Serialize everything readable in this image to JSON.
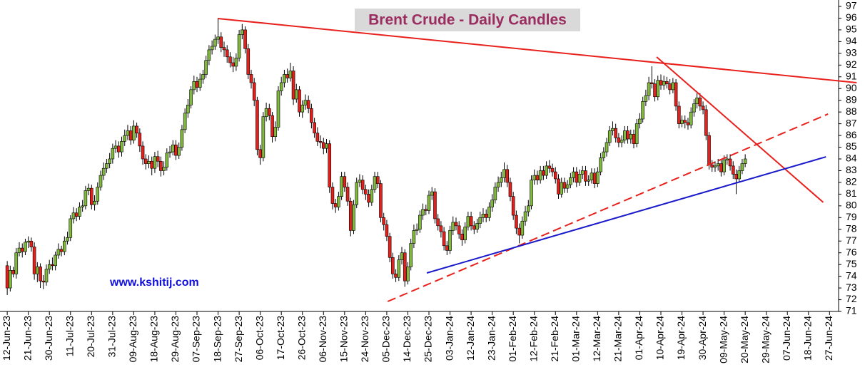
{
  "chart_data": {
    "type": "candlestick",
    "title": "Brent Crude - Daily Candles",
    "annotation": "www.kshitij.com",
    "up_color": "#80b93c",
    "down_color": "#e3201b",
    "open": [
      74.9,
      73.0,
      74.5,
      74.2,
      76.0,
      76.4,
      76.1,
      76.9,
      77.0,
      76.5,
      74.2,
      74.8,
      73.6,
      73.5,
      74.6,
      75.0,
      74.9,
      75.8,
      76.3,
      76.1,
      77.0,
      77.3,
      78.9,
      79.4,
      79.1,
      79.9,
      80.0,
      81.3,
      81.5,
      80.1,
      80.4,
      81.6,
      82.6,
      83.2,
      83.6,
      84.0,
      84.9,
      85.1,
      84.6,
      85.5,
      86.0,
      86.4,
      85.6,
      86.8,
      86.2,
      85.1,
      84.0,
      83.6,
      83.8,
      83.2,
      84.2,
      83.8,
      83.0,
      83.3,
      84.5,
      84.6,
      85.2,
      84.3,
      85.0,
      86.5,
      87.9,
      88.6,
      89.9,
      90.6,
      90.1,
      90.8,
      91.2,
      92.4,
      93.3,
      93.6,
      94.2,
      94.4,
      93.5,
      93.3,
      92.7,
      92.2,
      91.9,
      92.6,
      94.6,
      95.0,
      93.4,
      91.2,
      90.5,
      89.0,
      84.8,
      84.1,
      87.6,
      88.3,
      87.7,
      85.9,
      86.7,
      89.8,
      90.5,
      91.2,
      90.9,
      91.5,
      89.1,
      89.9,
      88.0,
      88.6,
      89.0,
      88.3,
      87.1,
      86.2,
      85.5,
      85.4,
      84.9,
      85.3,
      81.6,
      80.2,
      79.9,
      80.8,
      82.5,
      81.6,
      80.4,
      77.9,
      80.1,
      82.0,
      82.2,
      81.4,
      81.0,
      80.3,
      81.4,
      82.5,
      81.9,
      79.0,
      78.4,
      77.4,
      75.6,
      74.2,
      73.9,
      75.4,
      76.0,
      73.6,
      74.8,
      76.8,
      77.9,
      78.0,
      79.2,
      79.7,
      79.6,
      80.9,
      81.2,
      78.9,
      78.3,
      77.8,
      76.6,
      76.2,
      77.9,
      78.6,
      78.3,
      77.6,
      77.1,
      78.2,
      79.1,
      78.3,
      78.0,
      78.5,
      79.0,
      79.3,
      79.0,
      79.9,
      80.5,
      81.6,
      82.0,
      82.4,
      83.1,
      82.0,
      80.8,
      79.2,
      78.1,
      77.5,
      78.7,
      79.5,
      80.0,
      82.2,
      82.6,
      82.2,
      83.0,
      82.6,
      83.4,
      83.2,
      82.9,
      82.3,
      81.0,
      82.0,
      81.5,
      81.8,
      82.4,
      82.9,
      82.0,
      82.7,
      83.0,
      82.1,
      82.2,
      82.8,
      81.9,
      82.9,
      84.1,
      84.6,
      85.4,
      86.4,
      86.6,
      85.8,
      85.4,
      85.6,
      86.4,
      85.7,
      86.1,
      85.3,
      87.0,
      87.4,
      88.9,
      89.4,
      90.5,
      90.4,
      89.3,
      90.7,
      90.3,
      90.6,
      90.4,
      89.9,
      90.5,
      88.5,
      87.0,
      87.3,
      87.1,
      86.9,
      88.0,
      88.7,
      89.2,
      88.5,
      88.2,
      86.0,
      83.5,
      83.3,
      83.4,
      83.6,
      82.9,
      83.9,
      84.0,
      83.4,
      82.7,
      82.3,
      83.0,
      83.6
    ],
    "high": [
      75.3,
      74.9,
      74.8,
      76.4,
      76.9,
      76.8,
      77.2,
      77.4,
      77.3,
      76.9,
      75.2,
      75.1,
      74.1,
      75.0,
      75.4,
      75.6,
      76.1,
      76.8,
      76.6,
      77.4,
      77.8,
      79.2,
      79.9,
      79.8,
      80.3,
      80.5,
      81.7,
      81.9,
      81.8,
      80.9,
      82.0,
      83.0,
      83.7,
      84.0,
      84.5,
      85.3,
      85.6,
      85.5,
      85.9,
      86.5,
      86.9,
      86.8,
      87.3,
      87.1,
      86.6,
      85.5,
      84.4,
      84.3,
      84.2,
      84.6,
      84.7,
      84.2,
      83.8,
      84.9,
      85.1,
      85.6,
      85.6,
      85.4,
      86.9,
      88.3,
      89.1,
      90.2,
      91.1,
      91.0,
      91.3,
      91.6,
      92.8,
      93.7,
      94.1,
      94.6,
      96.0,
      94.8,
      94.0,
      93.7,
      93.1,
      92.7,
      93.0,
      95.0,
      95.5,
      95.3,
      93.8,
      91.6,
      90.9,
      89.3,
      85.2,
      88.0,
      88.8,
      88.7,
      88.0,
      87.2,
      90.2,
      91.0,
      91.6,
      91.7,
      92.2,
      91.9,
      90.4,
      90.2,
      89.0,
      89.5,
      89.4,
      88.7,
      87.5,
      86.7,
      86.0,
      85.8,
      85.7,
      85.6,
      82.0,
      80.6,
      81.2,
      82.9,
      82.9,
      82.0,
      80.7,
      80.5,
      82.4,
      82.7,
      82.6,
      81.8,
      81.4,
      81.8,
      82.9,
      82.9,
      82.2,
      79.4,
      78.8,
      77.7,
      76.0,
      74.6,
      75.8,
      76.5,
      76.3,
      75.2,
      77.2,
      78.4,
      78.5,
      79.6,
      80.2,
      80.1,
      81.3,
      81.6,
      81.5,
      79.3,
      78.7,
      78.2,
      77.0,
      78.3,
      79.1,
      79.0,
      78.7,
      78.0,
      78.6,
      79.5,
      79.5,
      78.7,
      78.9,
      79.5,
      79.8,
      79.7,
      80.3,
      81.0,
      82.0,
      82.5,
      82.9,
      83.7,
      83.5,
      82.4,
      81.2,
      79.6,
      78.5,
      79.1,
      80.0,
      80.5,
      82.6,
      83.1,
      83.0,
      83.4,
      83.4,
      83.8,
      83.9,
      83.6,
      83.3,
      82.7,
      82.4,
      82.4,
      82.2,
      82.8,
      83.3,
      83.3,
      83.1,
      83.4,
      83.4,
      82.6,
      83.2,
      83.2,
      83.3,
      84.5,
      85.0,
      85.8,
      86.8,
      87.2,
      87.0,
      86.2,
      86.0,
      86.8,
      86.8,
      86.5,
      86.5,
      87.4,
      87.9,
      89.3,
      89.9,
      91.0,
      91.9,
      90.8,
      91.1,
      91.2,
      91.1,
      91.0,
      90.8,
      90.9,
      90.8,
      88.9,
      87.7,
      87.7,
      87.5,
      88.4,
      89.1,
      89.6,
      89.6,
      88.9,
      88.6,
      86.3,
      83.9,
      83.8,
      84.0,
      84.0,
      84.3,
      84.4,
      84.4,
      83.8,
      83.1,
      83.4,
      84.0,
      84.4
    ],
    "low": [
      72.4,
      72.7,
      73.9,
      73.8,
      75.7,
      75.6,
      75.8,
      76.4,
      76.1,
      73.7,
      73.5,
      73.0,
      72.9,
      73.2,
      74.2,
      74.5,
      74.5,
      75.5,
      75.7,
      75.8,
      76.7,
      77.0,
      78.5,
      78.7,
      78.8,
      79.5,
      79.7,
      80.9,
      79.7,
      79.6,
      80.1,
      81.3,
      82.2,
      82.8,
      83.2,
      83.6,
      84.5,
      84.1,
      84.2,
      85.1,
      85.6,
      85.2,
      85.3,
      85.8,
      84.6,
      83.5,
      83.1,
      83.2,
      82.6,
      82.8,
      83.3,
      82.5,
      82.6,
      83.0,
      84.1,
      84.3,
      83.9,
      84.0,
      84.7,
      86.2,
      87.5,
      88.3,
      89.5,
      89.7,
      89.8,
      90.4,
      90.9,
      92.0,
      92.9,
      93.3,
      93.8,
      93.1,
      92.7,
      92.2,
      91.8,
      91.4,
      91.5,
      92.3,
      94.2,
      93.0,
      90.8,
      90.0,
      88.5,
      84.3,
      83.5,
      83.8,
      87.2,
      87.3,
      85.4,
      85.5,
      86.4,
      89.4,
      90.1,
      90.5,
      90.6,
      88.6,
      88.8,
      87.6,
      87.5,
      88.2,
      87.9,
      86.6,
      85.8,
      85.1,
      84.9,
      84.4,
      84.5,
      81.1,
      79.7,
      79.4,
      79.6,
      80.5,
      81.2,
      80.0,
      77.4,
      77.6,
      79.8,
      81.6,
      81.0,
      80.5,
      79.9,
      80.0,
      81.1,
      81.5,
      78.6,
      77.9,
      77.0,
      75.2,
      73.8,
      73.5,
      73.6,
      75.0,
      73.1,
      73.3,
      74.5,
      76.4,
      77.5,
      77.7,
      78.8,
      79.2,
      79.3,
      80.5,
      78.5,
      77.9,
      77.3,
      76.2,
      75.8,
      75.9,
      77.5,
      77.9,
      77.2,
      76.6,
      76.8,
      77.9,
      77.9,
      77.6,
      77.7,
      78.1,
      78.6,
      78.6,
      78.7,
      79.5,
      80.2,
      81.2,
      81.6,
      82.0,
      81.6,
      80.4,
      78.8,
      77.6,
      76.8,
      77.2,
      78.3,
      79.1,
      79.7,
      81.8,
      81.8,
      81.9,
      82.2,
      82.3,
      82.8,
      82.5,
      81.9,
      80.6,
      80.7,
      81.1,
      81.1,
      81.5,
      82.0,
      81.6,
      81.7,
      82.3,
      81.7,
      81.7,
      81.9,
      81.5,
      81.6,
      82.6,
      83.8,
      84.2,
      85.1,
      86.0,
      85.4,
      85.0,
      85.0,
      85.3,
      85.3,
      85.3,
      84.9,
      85.0,
      86.6,
      87.1,
      88.5,
      89.0,
      90.0,
      88.9,
      89.0,
      89.9,
      89.9,
      90.0,
      89.5,
      89.6,
      88.1,
      86.6,
      86.7,
      86.6,
      86.5,
      86.6,
      87.6,
      88.3,
      88.1,
      87.8,
      85.6,
      83.1,
      82.9,
      82.9,
      83.0,
      82.5,
      82.6,
      83.5,
      83.0,
      82.3,
      81.0,
      82.0,
      82.7,
      83.3
    ],
    "close": [
      73.0,
      74.5,
      74.2,
      76.0,
      76.4,
      76.1,
      76.9,
      77.0,
      76.5,
      74.2,
      74.8,
      73.6,
      73.5,
      74.6,
      75.0,
      74.9,
      75.8,
      76.3,
      76.1,
      77.0,
      77.3,
      78.9,
      79.4,
      79.1,
      79.9,
      80.0,
      81.3,
      81.5,
      80.1,
      80.4,
      81.6,
      82.6,
      83.2,
      83.6,
      84.0,
      84.9,
      85.1,
      84.6,
      85.5,
      86.0,
      86.4,
      85.6,
      86.8,
      86.2,
      85.1,
      84.0,
      83.6,
      83.8,
      83.2,
      84.2,
      83.8,
      83.0,
      83.3,
      84.5,
      84.6,
      85.2,
      84.3,
      85.0,
      86.5,
      87.9,
      88.6,
      89.9,
      90.6,
      90.1,
      90.8,
      91.2,
      92.4,
      93.3,
      93.6,
      94.2,
      94.4,
      93.5,
      93.3,
      92.7,
      92.2,
      91.9,
      92.6,
      94.6,
      95.0,
      93.4,
      91.2,
      90.5,
      89.0,
      84.8,
      84.1,
      87.6,
      88.3,
      87.7,
      85.9,
      86.7,
      89.8,
      90.5,
      91.2,
      90.9,
      91.5,
      89.1,
      89.9,
      88.0,
      88.6,
      89.0,
      88.3,
      87.1,
      86.2,
      85.5,
      85.4,
      84.9,
      85.3,
      81.6,
      80.2,
      79.9,
      80.8,
      82.5,
      81.6,
      80.4,
      77.9,
      80.1,
      82.0,
      82.2,
      81.4,
      81.0,
      80.3,
      81.4,
      82.5,
      81.9,
      79.0,
      78.4,
      77.4,
      75.6,
      74.2,
      73.9,
      75.4,
      76.0,
      73.6,
      74.8,
      76.8,
      77.9,
      78.0,
      79.2,
      79.7,
      79.6,
      80.9,
      81.2,
      78.9,
      78.3,
      77.8,
      76.6,
      76.2,
      77.9,
      78.6,
      78.3,
      77.6,
      77.1,
      78.2,
      79.1,
      78.3,
      78.0,
      78.5,
      79.0,
      79.3,
      79.0,
      79.9,
      80.5,
      81.6,
      82.0,
      82.4,
      83.1,
      82.0,
      80.8,
      79.2,
      78.1,
      77.5,
      78.7,
      79.5,
      80.0,
      82.2,
      82.6,
      82.2,
      83.0,
      82.6,
      83.4,
      83.2,
      82.9,
      82.3,
      81.0,
      82.0,
      81.5,
      81.8,
      82.4,
      82.9,
      82.0,
      82.7,
      83.0,
      82.1,
      82.2,
      82.8,
      81.9,
      82.9,
      84.1,
      84.6,
      85.4,
      86.4,
      86.6,
      85.8,
      85.4,
      85.6,
      86.4,
      85.7,
      86.1,
      85.3,
      87.0,
      87.4,
      88.9,
      89.4,
      90.5,
      90.4,
      89.3,
      90.7,
      90.3,
      90.6,
      90.4,
      89.9,
      90.5,
      88.5,
      87.0,
      87.3,
      87.1,
      86.9,
      88.0,
      88.7,
      89.2,
      88.5,
      88.2,
      86.0,
      83.5,
      83.3,
      83.4,
      83.6,
      82.9,
      83.9,
      84.0,
      83.4,
      82.7,
      82.3,
      83.0,
      83.6,
      84.0
    ],
    "trend_lines": [
      {
        "color": "#e8211d",
        "dashed": false,
        "x": [
          69.9,
          282
        ],
        "y": [
          95.97,
          90.5
        ]
      },
      {
        "color": "#e8211d",
        "dashed": false,
        "x": [
          215.6,
          270.9
        ],
        "y": [
          92.69,
          80.3
        ]
      },
      {
        "color": "#e8211d",
        "dashed": true,
        "x": [
          126.3,
          272.5
        ],
        "y": [
          71.85,
          87.83
        ]
      },
      {
        "color": "#1a1acc",
        "dashed": false,
        "x": [
          139.3,
          271.8
        ],
        "y": [
          74.28,
          84.18
        ]
      }
    ],
    "xlim": [
      -2.4,
      276
    ],
    "xticks": [
      {
        "value": 0,
        "label": "12-Jun-23"
      },
      {
        "value": 7,
        "label": "21-Jun-23"
      },
      {
        "value": 14,
        "label": "30-Jun-23"
      },
      {
        "value": 21,
        "label": "11-Jul-23"
      },
      {
        "value": 28,
        "label": "20-Jul-23"
      },
      {
        "value": 35,
        "label": "31-Jul-23"
      },
      {
        "value": 42,
        "label": "09-Aug-23"
      },
      {
        "value": 49,
        "label": "18-Aug-23"
      },
      {
        "value": 56,
        "label": "29-Aug-23"
      },
      {
        "value": 63,
        "label": "07-Sep-23"
      },
      {
        "value": 70,
        "label": "18-Sep-23"
      },
      {
        "value": 77,
        "label": "27-Sep-23"
      },
      {
        "value": 84,
        "label": "06-Oct-23"
      },
      {
        "value": 91,
        "label": "17-Oct-23"
      },
      {
        "value": 98,
        "label": "26-Oct-23"
      },
      {
        "value": 105,
        "label": "06-Nov-23"
      },
      {
        "value": 112,
        "label": "15-Nov-23"
      },
      {
        "value": 119,
        "label": "24-Nov-23"
      },
      {
        "value": 126,
        "label": "05-Dec-23"
      },
      {
        "value": 133,
        "label": "14-Dec-23"
      },
      {
        "value": 140,
        "label": "25-Dec-23"
      },
      {
        "value": 147,
        "label": "03-Jan-24"
      },
      {
        "value": 154,
        "label": "12-Jan-24"
      },
      {
        "value": 161,
        "label": "23-Jan-24"
      },
      {
        "value": 168,
        "label": "01-Feb-24"
      },
      {
        "value": 175,
        "label": "12-Feb-24"
      },
      {
        "value": 182,
        "label": "21-Feb-24"
      },
      {
        "value": 189,
        "label": "01-Mar-24"
      },
      {
        "value": 196,
        "label": "12-Mar-24"
      },
      {
        "value": 203,
        "label": "21-Mar-24"
      },
      {
        "value": 210,
        "label": "01-Apr-24"
      },
      {
        "value": 217,
        "label": "10-Apr-24"
      },
      {
        "value": 224,
        "label": "19-Apr-24"
      },
      {
        "value": 231,
        "label": "30-Apr-24"
      },
      {
        "value": 238,
        "label": "09-May-24"
      },
      {
        "value": 245,
        "label": "20-May-24"
      },
      {
        "value": 252,
        "label": "29-May-24"
      },
      {
        "value": 259,
        "label": "07-Jun-24"
      },
      {
        "value": 266,
        "label": "18-Jun-24"
      },
      {
        "value": 273,
        "label": "27-Jun-24"
      }
    ],
    "ylim": [
      71,
      97
    ],
    "yticks": [
      71,
      72,
      73,
      74,
      75,
      76,
      77,
      78,
      79,
      80,
      81,
      82,
      83,
      84,
      85,
      86,
      87,
      88,
      89,
      90,
      91,
      92,
      93,
      94,
      95,
      96,
      97
    ]
  }
}
